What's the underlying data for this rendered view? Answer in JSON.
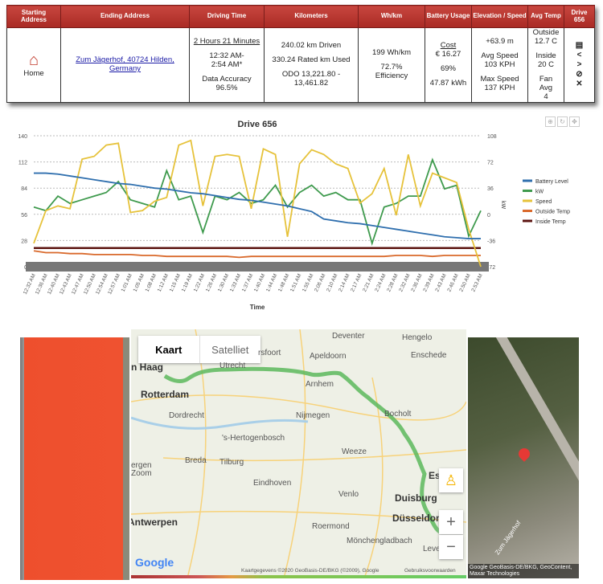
{
  "table": {
    "headers": [
      "Starting Address",
      "Ending Address",
      "Driving Time",
      "Kilometers",
      "Wh/km",
      "Battery Usage",
      "Elevation / Speed",
      "Avg Temp",
      "Drive 656"
    ],
    "start": {
      "icon": "home-icon",
      "label": "Home"
    },
    "end": {
      "link": "Zum Jägerhof, 40724 Hilden, Germany"
    },
    "time": {
      "duration": "2 Hours 21 Minutes",
      "range1": "12:32 AM-",
      "range2": "2:54 AM*",
      "accuracy_label": "Data Accuracy",
      "accuracy": "96.5%"
    },
    "km": {
      "driven": "240.02 km Driven",
      "rated": "330.24 Rated km Used",
      "odo1": "ODO 13,221.80 -",
      "odo2": "13,461.82"
    },
    "whkm": {
      "value": "199 Wh/km",
      "eff": "72.7%",
      "eff_label": "Efficiency"
    },
    "battery": {
      "cost_label": "Cost",
      "cost": "€ 16.27",
      "pct": "69%",
      "kwh": "47.87 kWh"
    },
    "elev": {
      "elevation": "+63.9 m",
      "avg_label": "Avg Speed",
      "avg": "103 KPH",
      "max_label": "Max Speed",
      "max": "137 KPH"
    },
    "temp": {
      "out_label": "Outside",
      "out": "12.7 C",
      "in_label": "Inside",
      "in": "20 C",
      "fan1": "Fan",
      "fan2": "Avg",
      "fan3": "4"
    },
    "actions": [
      "clipboard-icon",
      "share-icon",
      "merge-icon",
      "hide-icon",
      "delete-icon"
    ]
  },
  "chart_data": {
    "type": "line",
    "title": "Drive 656",
    "xlabel": "Time",
    "ylabel_right": "kW",
    "ylim_left": [
      0,
      140
    ],
    "yticks_left": [
      0,
      28,
      56,
      84,
      112,
      140
    ],
    "ylim_right": [
      -72,
      108
    ],
    "yticks_right": [
      -72,
      -36,
      0,
      36,
      72,
      108
    ],
    "grid": true,
    "legend": "right",
    "x": [
      "12:32 AM",
      "12:36 AM",
      "12:40 AM",
      "12:43 AM",
      "12:47 AM",
      "12:50 AM",
      "12:54 AM",
      "12:57 AM",
      "1:01 AM",
      "1:05 AM",
      "1:08 AM",
      "1:12 AM",
      "1:15 AM",
      "1:19 AM",
      "1:22 AM",
      "1:26 AM",
      "1:30 AM",
      "1:33 AM",
      "1:37 AM",
      "1:40 AM",
      "1:44 AM",
      "1:48 AM",
      "1:51 AM",
      "1:55 AM",
      "2:06 AM",
      "2:10 AM",
      "2:14 AM",
      "2:17 AM",
      "2:21 AM",
      "2:24 AM",
      "2:28 AM",
      "2:32 AM",
      "2:36 AM",
      "2:39 AM",
      "2:43 AM",
      "2:46 AM",
      "2:50 AM",
      "2:53 AM"
    ],
    "series": [
      {
        "name": "Battery Level",
        "axis": "left",
        "color": "#2f6fae",
        "values": [
          100,
          100,
          99,
          97,
          95,
          93,
          91,
          89,
          88,
          86,
          84,
          83,
          81,
          79,
          78,
          76,
          74,
          72,
          71,
          69,
          67,
          65,
          62,
          59,
          51,
          49,
          47,
          46,
          44,
          42,
          40,
          38,
          36,
          34,
          32,
          31,
          30,
          30
        ]
      },
      {
        "name": "kW",
        "axis": "right",
        "color": "#3e9a4d",
        "values": [
          10,
          5,
          25,
          15,
          20,
          25,
          30,
          45,
          20,
          15,
          10,
          60,
          20,
          25,
          -25,
          25,
          20,
          30,
          15,
          20,
          40,
          10,
          30,
          40,
          25,
          30,
          20,
          20,
          -40,
          10,
          15,
          25,
          25,
          75,
          35,
          40,
          -30,
          5
        ]
      },
      {
        "name": "Speed",
        "axis": "left",
        "color": "#e6c23a",
        "values": [
          25,
          60,
          65,
          62,
          115,
          118,
          130,
          132,
          58,
          60,
          70,
          74,
          130,
          135,
          65,
          118,
          120,
          118,
          62,
          126,
          120,
          32,
          110,
          125,
          120,
          110,
          105,
          68,
          78,
          105,
          55,
          120,
          65,
          100,
          95,
          90,
          40,
          0
        ]
      },
      {
        "name": "Outside Temp",
        "axis": "left",
        "color": "#d9692b",
        "values": [
          17,
          15,
          15,
          14,
          14,
          13,
          13,
          13,
          13,
          12,
          12,
          11,
          11,
          11,
          11,
          11,
          11,
          10,
          11,
          11,
          11,
          11,
          11,
          11,
          11,
          11,
          11,
          11,
          11,
          11,
          12,
          12,
          12,
          11,
          12,
          12,
          12,
          12
        ]
      },
      {
        "name": "Inside Temp",
        "axis": "left",
        "color": "#5c1410",
        "values": [
          20,
          20,
          20,
          20,
          20,
          20,
          20,
          20,
          20,
          20,
          20,
          20,
          20,
          20,
          20,
          20,
          20,
          20,
          20,
          20,
          20,
          20,
          20,
          20,
          20,
          20,
          20,
          20,
          20,
          20,
          20,
          20,
          20,
          20,
          20,
          20,
          20,
          20
        ]
      }
    ]
  },
  "chart_tools": [
    "zoom-icon",
    "reset-icon",
    "pan-icon"
  ],
  "map": {
    "tabs": [
      "Kaart",
      "Satelliet"
    ],
    "labels": [
      "Deventer",
      "Hengelo",
      "Apeldoorn",
      "Enschede",
      "rsfoort",
      "Utrecht",
      "n Haag",
      "Rotterdam",
      "Arnhem",
      "Dordrecht",
      "Nijmegen",
      "Bocholt",
      "'s-Hertogenbosch",
      "Weeze",
      "Breda",
      "Tilburg",
      "Eindhoven",
      "Venlo",
      "Duisburg",
      "Düsseldorf",
      "Roermond",
      "Mönchengladbach",
      "Antwerpen",
      "ergen Zoom",
      "Es",
      "Leve"
    ],
    "attribution": "Kaartgegevens ©2020 GeoBasis-DE/BKG (©2009), Google",
    "terms": "Gebruiksvoorwaarden",
    "logo": "Google",
    "zoom_in": "+",
    "zoom_out": "−",
    "route_color": "#5cb85c"
  },
  "satellite": {
    "street": "Zum Jägerhof",
    "attribution": "Google  GeoBasis-DE/BKG, GeoContent, Maxar Technologies"
  }
}
